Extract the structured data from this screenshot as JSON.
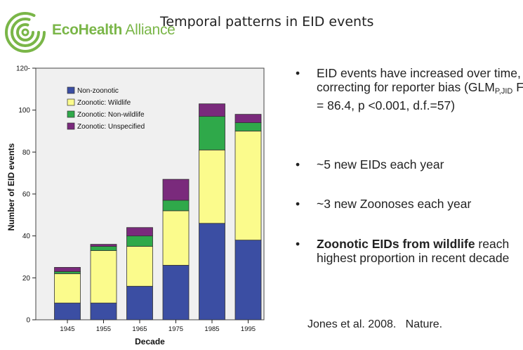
{
  "header": {
    "brand_bold": "EcoHealth",
    "brand_light": " Alliance",
    "title": "Temporal patterns in EID events"
  },
  "colors": {
    "brand": "#7ab648",
    "non_zoonotic": "#3b4ea3",
    "zoonotic_wildlife": "#fbfb8c",
    "zoonotic_non_wildlife": "#2fa94a",
    "zoonotic_unspecified": "#7a2a7c",
    "plot_background": "#f0f0f0"
  },
  "chart_data": {
    "type": "bar",
    "stacked": true,
    "categories": [
      "1945",
      "1955",
      "1965",
      "1975",
      "1985",
      "1995"
    ],
    "series": [
      {
        "name": "Non-zoonotic",
        "values": [
          8,
          8,
          16,
          26,
          46,
          38
        ]
      },
      {
        "name": "Zoonotic: Wildlife",
        "values": [
          14,
          25,
          19,
          26,
          35,
          52
        ]
      },
      {
        "name": "Zoonotic: Non-wildlife",
        "values": [
          1,
          2,
          5,
          5,
          16,
          4
        ]
      },
      {
        "name": "Zoonotic: Unspecified",
        "values": [
          2,
          1,
          4,
          10,
          6,
          4
        ]
      }
    ],
    "xlabel": "Decade",
    "ylabel": "Number of EID events",
    "ylim": [
      0,
      120
    ],
    "yticks": [
      0,
      20,
      40,
      60,
      80,
      100,
      120
    ],
    "ytick_labels": [
      "0",
      "20",
      "40",
      "60",
      "80",
      "100",
      "120-"
    ],
    "legend_position": "top-left",
    "grid": false
  },
  "bullets": [
    {
      "dot": "•",
      "html": "EID events have increased over time, correcting for reporter bias (GLM<sub>P,JID</sub> F = 86.4, p &lt;0.001, d.f.=57)"
    },
    {
      "dot": "•",
      "html": "~5 new EIDs each year"
    },
    {
      "dot": "•",
      "html": "~3 new Zoonoses each year"
    },
    {
      "dot": "•",
      "html": "<b>Zoonotic EIDs from wildlife</b> reach highest proportion in recent decade"
    }
  ],
  "citation": "Jones et al. 2008.   Nature."
}
